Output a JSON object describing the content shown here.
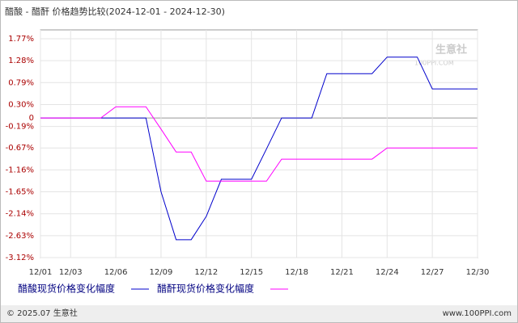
{
  "chart_data": {
    "type": "line",
    "title": "醋酸 - 醋酐 价格趋势比较(2024-12-01 - 2024-12-30)",
    "categories": [
      "12/01",
      null,
      "12/03",
      null,
      null,
      "12/06",
      null,
      null,
      "12/09",
      null,
      null,
      "12/12",
      null,
      null,
      "12/15",
      null,
      null,
      "12/18",
      null,
      null,
      "12/21",
      null,
      null,
      "12/24",
      null,
      null,
      "12/27",
      null,
      null,
      "12/30"
    ],
    "series": [
      {
        "name": "醋酸现货价格变化幅度",
        "color": "#0000cc",
        "values": [
          0,
          0,
          0,
          0,
          0,
          0,
          0,
          0,
          -1.65,
          -2.72,
          -2.72,
          -2.2,
          -1.37,
          -1.37,
          -1.37,
          -0.69,
          0,
          0,
          0,
          0.99,
          0.99,
          0.99,
          0.99,
          1.36,
          1.36,
          1.36,
          0.65,
          0.65,
          0.65,
          0.65
        ]
      },
      {
        "name": "醋酐现货价格变化幅度",
        "color": "#ff00ff",
        "values": [
          0,
          0,
          0,
          0,
          0,
          0.25,
          0.25,
          0.25,
          -0.25,
          -0.76,
          -0.76,
          -1.41,
          -1.41,
          -1.41,
          -1.41,
          -1.41,
          -0.92,
          -0.92,
          -0.92,
          -0.92,
          -0.92,
          -0.92,
          -0.92,
          -0.67,
          -0.67,
          -0.67,
          -0.67,
          -0.67,
          -0.67,
          -0.67
        ]
      }
    ],
    "ylim": [
      -3.12,
      1.77
    ],
    "yticks": [
      {
        "value": 1.77,
        "label": "1.77%"
      },
      {
        "value": 1.28,
        "label": "1.28%"
      },
      {
        "value": 0.79,
        "label": "0.79%"
      },
      {
        "value": 0.3,
        "label": "0.30%"
      },
      0,
      {
        "value": -0.19,
        "label": "-0.19%"
      },
      {
        "value": -0.67,
        "label": "-0.67%"
      },
      {
        "value": -1.16,
        "label": "-1.16%"
      },
      {
        "value": -1.65,
        "label": "-1.65%"
      },
      {
        "value": -2.14,
        "label": "-2.14%"
      },
      {
        "value": -2.63,
        "label": "-2.63%"
      },
      {
        "value": -3.12,
        "label": "-3.12%"
      }
    ],
    "grid": true,
    "watermark": [
      "生意社",
      "100PPI.COM"
    ],
    "footer": [
      "© 2025.07 生意社",
      "www.100PPI.com"
    ]
  }
}
